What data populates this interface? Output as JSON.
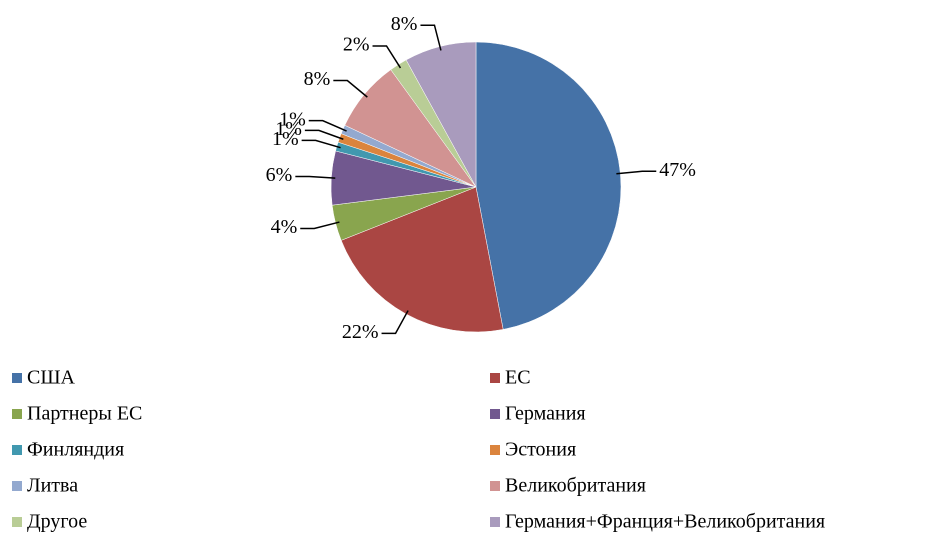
{
  "chart_data": {
    "type": "pie",
    "categories": [
      "США",
      "ЕС",
      "Партнеры ЕС",
      "Германия",
      "Финляндия",
      "Эстония",
      "Литва",
      "Великобритания",
      "Другое",
      "Германия+Франция+Великобритания"
    ],
    "values": [
      47,
      22,
      4,
      6,
      1,
      1,
      1,
      8,
      2,
      8
    ],
    "value_labels": [
      "47%",
      "22%",
      "4%",
      "6%",
      "1%",
      "1%",
      "1%",
      "8%",
      "2%",
      "8%"
    ],
    "colors": [
      "#4572a7",
      "#aa4643",
      "#89a54e",
      "#71588f",
      "#4198af",
      "#db843d",
      "#93a9cf",
      "#d19392",
      "#b9cd96",
      "#a99bbd"
    ],
    "legend": "bottom"
  }
}
